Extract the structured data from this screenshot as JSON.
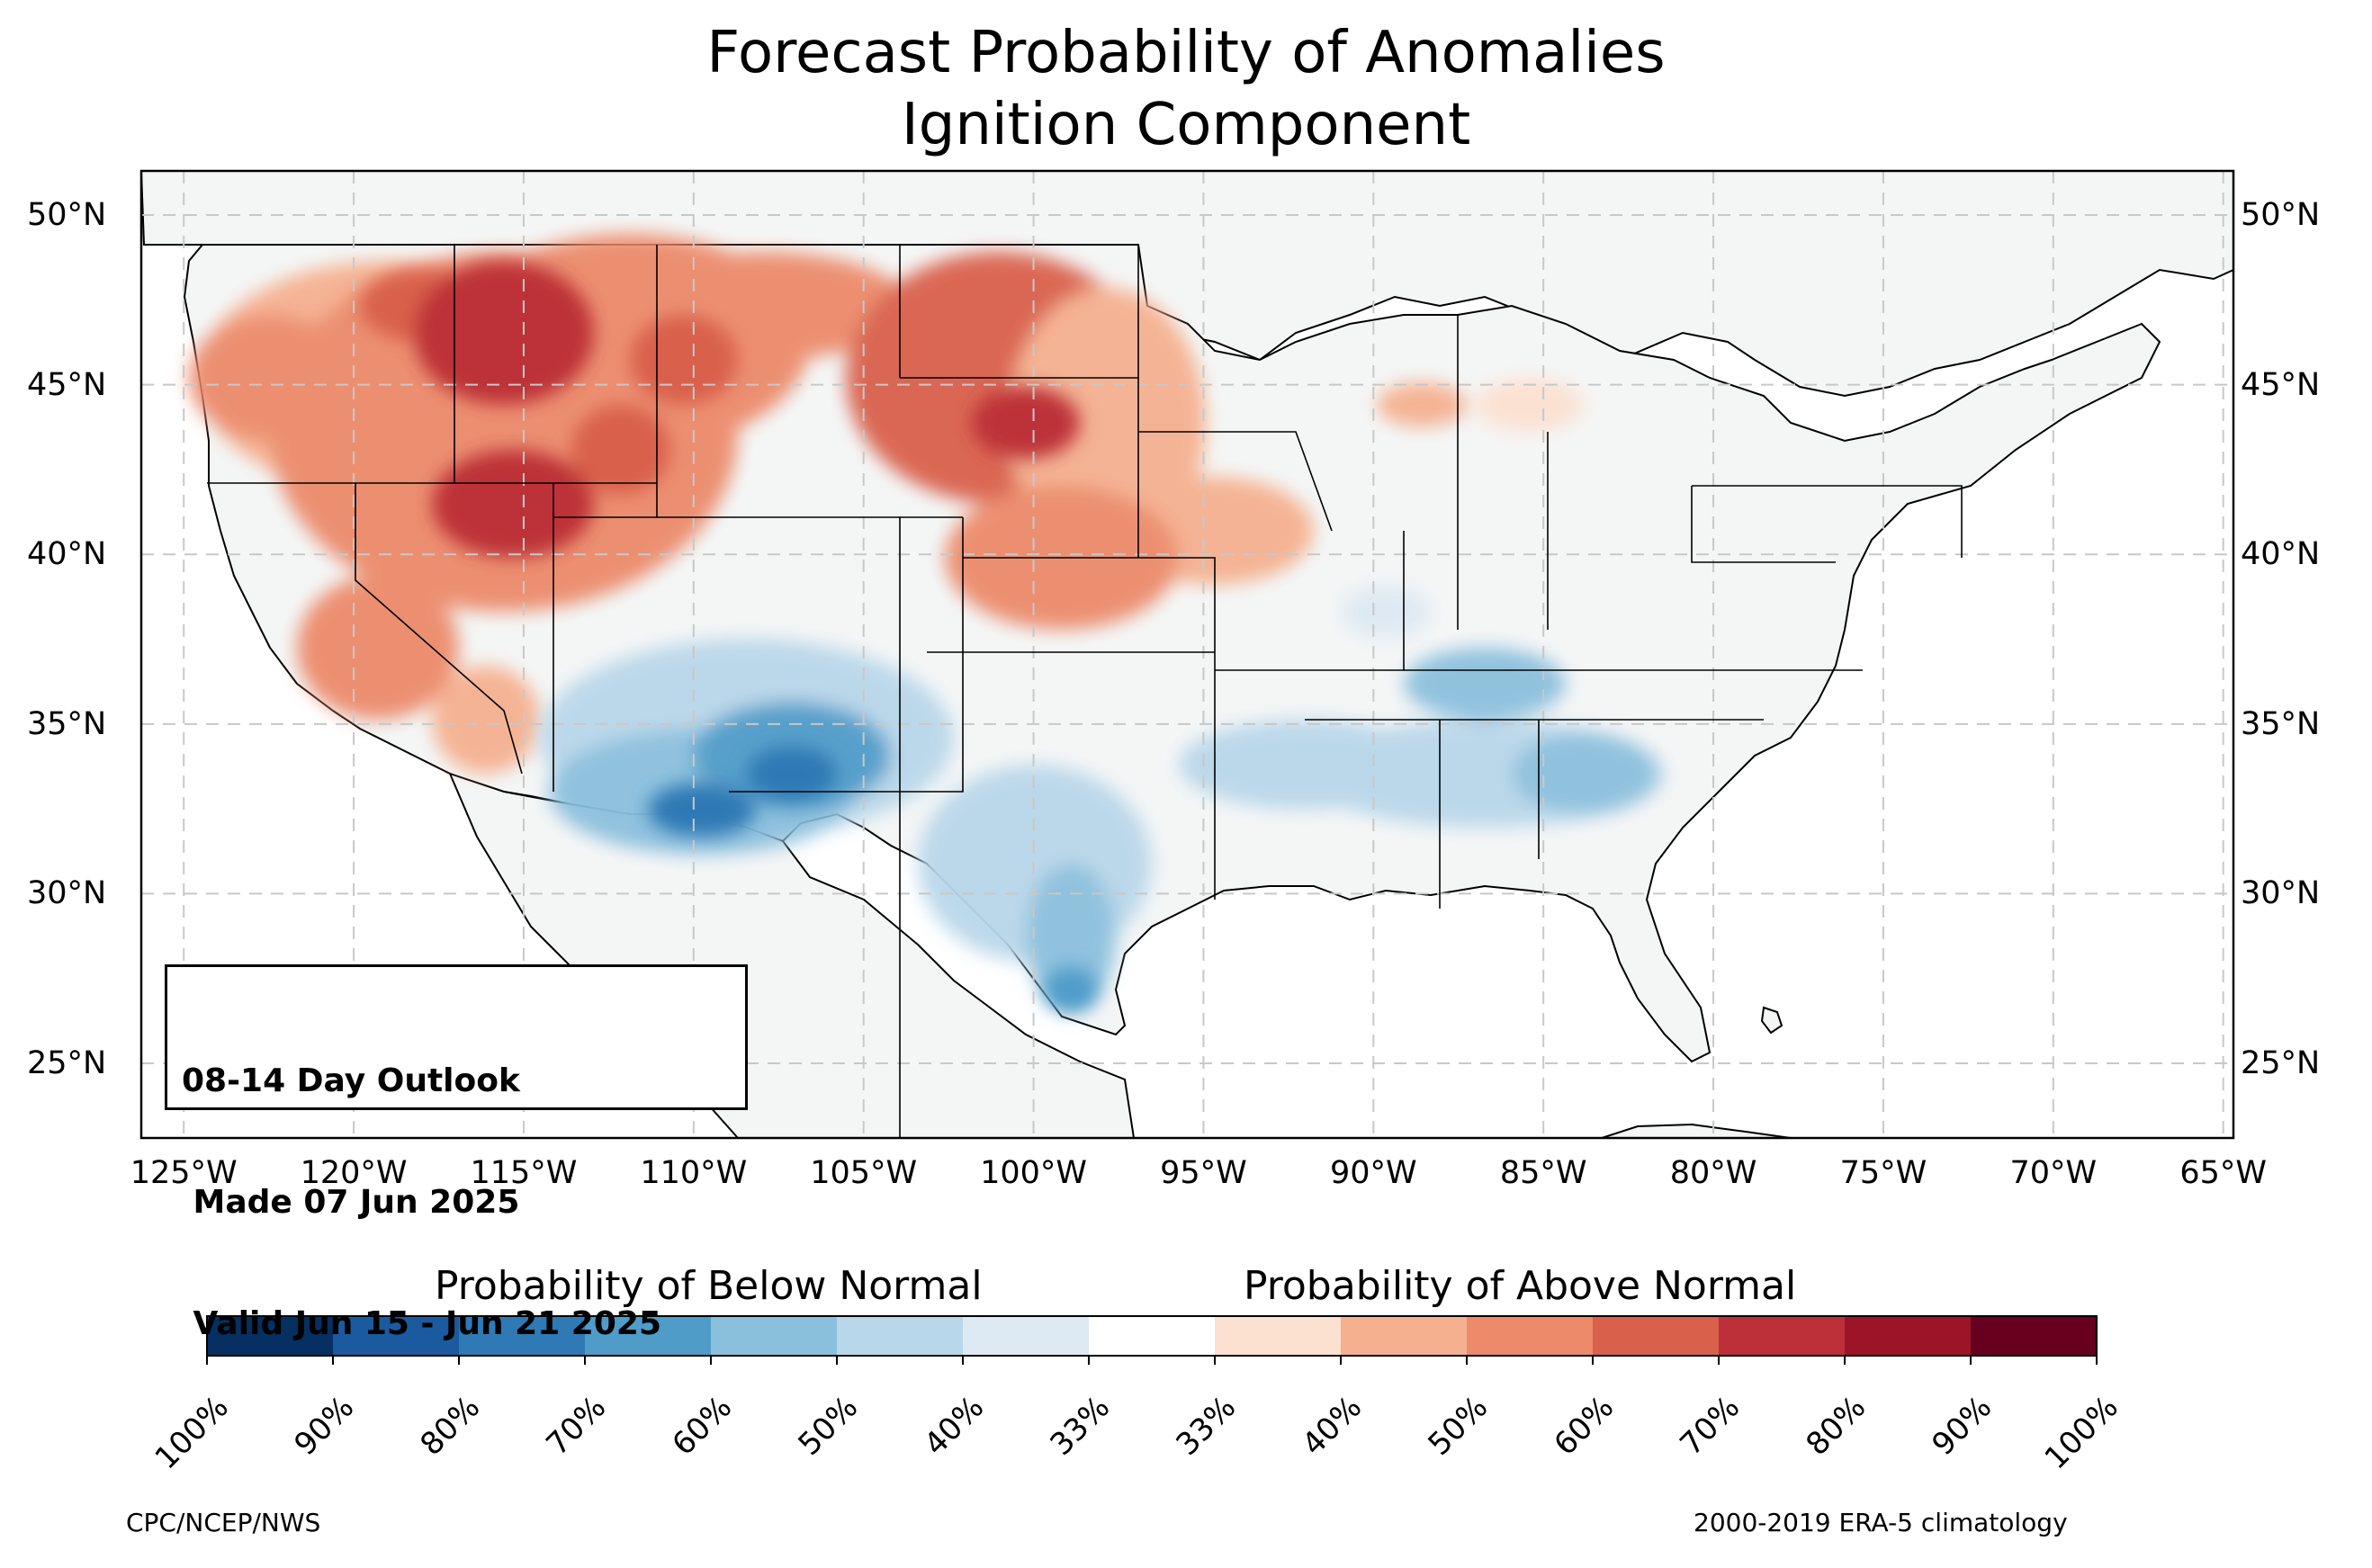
{
  "title": {
    "line1": "Forecast Probability of Anomalies",
    "line2": "Ignition Component"
  },
  "map": {
    "lat_labels": [
      "50°N",
      "45°N",
      "40°N",
      "35°N",
      "30°N",
      "25°N"
    ],
    "lon_labels": [
      "125°W",
      "120°W",
      "115°W",
      "110°W",
      "105°W",
      "100°W",
      "95°W",
      "90°W",
      "85°W",
      "80°W",
      "75°W",
      "70°W",
      "65°W"
    ],
    "lon_range": [
      -126.25,
      -64.7
    ],
    "lat_range": [
      22.8,
      51.3
    ],
    "gridlines": "dashed",
    "land_color": "#f4f6f6"
  },
  "info_box": {
    "line1": "08-14 Day Outlook",
    "line2": " Made 07 Jun 2025",
    "line3": " Valid Jun 15 - Jun 21 2025"
  },
  "colorbar": {
    "below_heading": "Probability of Below Normal",
    "above_heading": "Probability of Above Normal",
    "colors": [
      "#053061",
      "#1b5a9e",
      "#2f79b5",
      "#4f9cc9",
      "#8bc0dd",
      "#b9d7ea",
      "#dde9f3",
      "#ffffff",
      "#fce0d0",
      "#f5b08f",
      "#ec8a6a",
      "#d9604b",
      "#bd3039",
      "#9c1428",
      "#67001f"
    ],
    "tick_labels": [
      "100%",
      "90%",
      "80%",
      "70%",
      "60%",
      "50%",
      "40%",
      "33%",
      "33%",
      "40%",
      "50%",
      "60%",
      "70%",
      "80%",
      "90%",
      "100%"
    ]
  },
  "footer": {
    "left": "CPC/NCEP/NWS",
    "right": "2000-2019 ERA-5 climatology"
  }
}
